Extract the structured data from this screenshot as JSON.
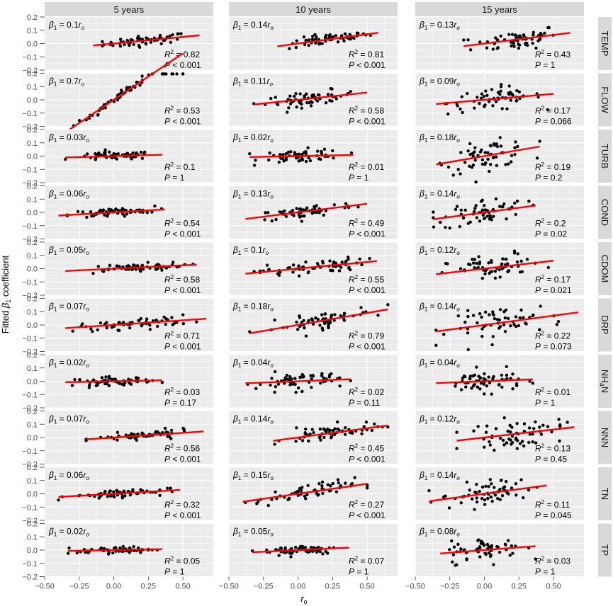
{
  "colors": {
    "panel_background": "#ebebeb",
    "gridline": "#ffffff",
    "strip_background": "#d9d9d9",
    "point": "#000000",
    "fit_line": "#ff0000",
    "text": "#4d4d4d"
  },
  "chart_data": {
    "type": "scatter",
    "xlabel": "r_o",
    "ylabel": "Fitted β1 coefficient",
    "xlim": [
      -0.5,
      0.72
    ],
    "ylim": [
      -0.2,
      0.2
    ],
    "x_ticks": [
      -0.5,
      -0.25,
      0.0,
      0.25,
      0.5
    ],
    "x_tick_labels": [
      "−0.50",
      "−0.25",
      "0.00",
      "0.25",
      "0.50"
    ],
    "y_ticks": [
      -0.2,
      -0.1,
      0.0,
      0.1,
      0.2
    ],
    "y_tick_labels": [
      "−0.2",
      "−0.1",
      "0.0",
      "0.1",
      "0.2"
    ],
    "grid": true,
    "columns": [
      "5 years",
      "10 years",
      "15 years"
    ],
    "rows": [
      "TEMP",
      "FLOW",
      "TURB",
      "COND",
      "CDOM",
      "DRP",
      "NH4N",
      "NNN",
      "TN",
      "TP"
    ],
    "row_labels": [
      {
        "text": "TEMP",
        "sub": ""
      },
      {
        "text": "FLOW",
        "sub": ""
      },
      {
        "text": "TURB",
        "sub": ""
      },
      {
        "text": "COND",
        "sub": ""
      },
      {
        "text": "CDOM",
        "sub": ""
      },
      {
        "text": "DRP",
        "sub": ""
      },
      {
        "text": "NH",
        "sub": "4",
        "rest": "N"
      },
      {
        "text": "NNN",
        "sub": ""
      },
      {
        "text": "TN",
        "sub": ""
      },
      {
        "text": "TP",
        "sub": ""
      }
    ],
    "panels": [
      [
        {
          "slope": "0.1",
          "r2": "0.82",
          "p": "< 0.001",
          "xr": [
            -0.15,
            0.62
          ],
          "noise": 0.018
        },
        {
          "slope": "0.14",
          "r2": "0.81",
          "p": "< 0.001",
          "xr": [
            -0.15,
            0.58
          ],
          "noise": 0.02
        },
        {
          "slope": "0.13",
          "r2": "0.43",
          "p": "= 1",
          "xr": [
            -0.15,
            0.62
          ],
          "noise": 0.04
        }
      ],
      [
        {
          "slope": "0.7",
          "r2": "0.53",
          "p": "< 0.001",
          "xr": [
            -0.37,
            0.5
          ],
          "noise": 0.015
        },
        {
          "slope": "0.11",
          "r2": "0.58",
          "p": "< 0.001",
          "xr": [
            -0.32,
            0.5
          ],
          "noise": 0.025
        },
        {
          "slope": "0.09",
          "r2": "0.17",
          "p": "= 0.066",
          "xr": [
            -0.35,
            0.5
          ],
          "noise": 0.045
        }
      ],
      [
        {
          "slope": "0.03",
          "r2": "0.1",
          "p": "= 1",
          "xr": [
            -0.35,
            0.35
          ],
          "noise": 0.015
        },
        {
          "slope": "0.02",
          "r2": "0.01",
          "p": "= 1",
          "xr": [
            -0.35,
            0.4
          ],
          "noise": 0.025
        },
        {
          "slope": "0.18",
          "r2": "0.19",
          "p": "= 0.2",
          "xr": [
            -0.35,
            0.4
          ],
          "noise": 0.05
        }
      ],
      [
        {
          "slope": "0.06",
          "r2": "0.54",
          "p": "< 0.001",
          "xr": [
            -0.4,
            0.37
          ],
          "noise": 0.015
        },
        {
          "slope": "0.13",
          "r2": "0.49",
          "p": "< 0.001",
          "xr": [
            -0.38,
            0.5
          ],
          "noise": 0.025
        },
        {
          "slope": "0.14",
          "r2": "0.2",
          "p": "= 0.02",
          "xr": [
            -0.37,
            0.37
          ],
          "noise": 0.05
        }
      ],
      [
        {
          "slope": "0.05",
          "r2": "0.58",
          "p": "< 0.001",
          "xr": [
            -0.35,
            0.6
          ],
          "noise": 0.015
        },
        {
          "slope": "0.1",
          "r2": "0.55",
          "p": "< 0.001",
          "xr": [
            -0.38,
            0.57
          ],
          "noise": 0.025
        },
        {
          "slope": "0.12",
          "r2": "0.17",
          "p": "= 0.021",
          "xr": [
            -0.35,
            0.5
          ],
          "noise": 0.05
        }
      ],
      [
        {
          "slope": "0.07",
          "r2": "0.71",
          "p": "< 0.001",
          "xr": [
            -0.35,
            0.67
          ],
          "noise": 0.02
        },
        {
          "slope": "0.18",
          "r2": "0.79",
          "p": "< 0.001",
          "xr": [
            -0.35,
            0.65
          ],
          "noise": 0.03
        },
        {
          "slope": "0.14",
          "r2": "0.22",
          "p": "= 0.073",
          "xr": [
            -0.35,
            0.68
          ],
          "noise": 0.06
        }
      ],
      [
        {
          "slope": "0.02",
          "r2": "0.03",
          "p": "= 0.17",
          "xr": [
            -0.35,
            0.35
          ],
          "noise": 0.015
        },
        {
          "slope": "0.04",
          "r2": "0.02",
          "p": "= 0.11",
          "xr": [
            -0.38,
            0.38
          ],
          "noise": 0.035
        },
        {
          "slope": "0.04",
          "r2": "0.01",
          "p": "= 1",
          "xr": [
            -0.35,
            0.35
          ],
          "noise": 0.04
        }
      ],
      [
        {
          "slope": "0.07",
          "r2": "0.56",
          "p": "< 0.001",
          "xr": [
            -0.2,
            0.65
          ],
          "noise": 0.015
        },
        {
          "slope": "0.14",
          "r2": "0.45",
          "p": "< 0.001",
          "xr": [
            -0.18,
            0.65
          ],
          "noise": 0.03
        },
        {
          "slope": "0.12",
          "r2": "0.13",
          "p": "= 0.45",
          "xr": [
            -0.2,
            0.65
          ],
          "noise": 0.05
        }
      ],
      [
        {
          "slope": "0.06",
          "r2": "0.32",
          "p": "< 0.001",
          "xr": [
            -0.4,
            0.48
          ],
          "noise": 0.015
        },
        {
          "slope": "0.15",
          "r2": "0.27",
          "p": "< 0.001",
          "xr": [
            -0.4,
            0.5
          ],
          "noise": 0.03
        },
        {
          "slope": "0.14",
          "r2": "0.11",
          "p": "= 0.045",
          "xr": [
            -0.4,
            0.45
          ],
          "noise": 0.05
        }
      ],
      [
        {
          "slope": "0.02",
          "r2": "0.05",
          "p": "= 1",
          "xr": [
            -0.33,
            0.35
          ],
          "noise": 0.012
        },
        {
          "slope": "0.05",
          "r2": "0.07",
          "p": "= 1",
          "xr": [
            -0.33,
            0.37
          ],
          "noise": 0.02
        },
        {
          "slope": "0.08",
          "r2": "0.03",
          "p": "= 1",
          "xr": [
            -0.32,
            0.37
          ],
          "noise": 0.045
        }
      ]
    ]
  }
}
